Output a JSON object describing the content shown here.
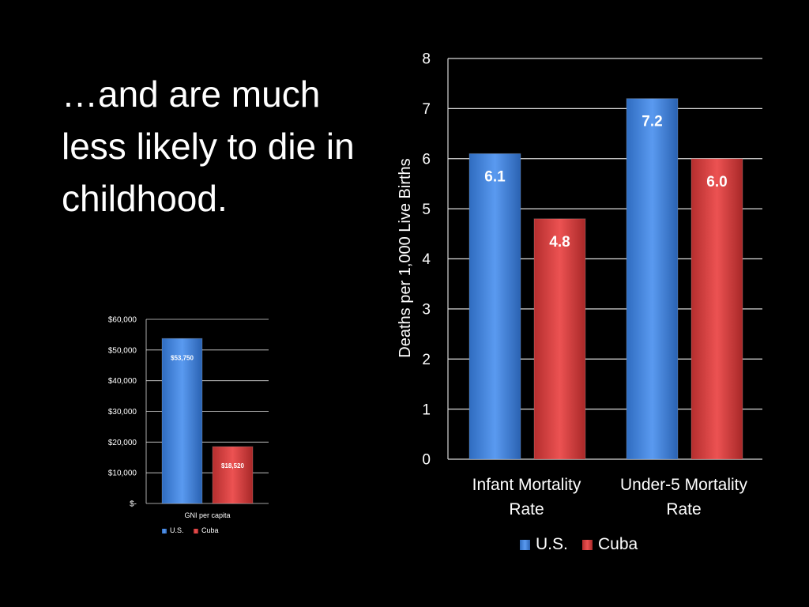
{
  "slide": {
    "title": "…and are much less likely to die in childhood."
  },
  "colors": {
    "us": "#3a7fd6",
    "cuba": "#d43a3a",
    "background": "#000000",
    "text": "#ffffff"
  },
  "chart_data": [
    {
      "id": "mortality",
      "type": "bar",
      "title": "",
      "ylabel": "Deaths per 1,000 Live Births",
      "xlabel": "",
      "ylim": [
        0,
        8
      ],
      "yticks": [
        0,
        1,
        2,
        3,
        4,
        5,
        6,
        7,
        8
      ],
      "grid": true,
      "legend_position": "bottom",
      "categories": [
        [
          "Infant Mortality",
          "Rate"
        ],
        [
          "Under-5 Mortality",
          "Rate"
        ]
      ],
      "series": [
        {
          "name": "U.S.",
          "values": [
            6.1,
            7.2
          ],
          "labels": [
            "6.1",
            "7.2"
          ]
        },
        {
          "name": "Cuba",
          "values": [
            4.8,
            6.0
          ],
          "labels": [
            "4.8",
            "6.0"
          ]
        }
      ]
    },
    {
      "id": "gni",
      "type": "bar",
      "title": "",
      "ylabel": "",
      "xlabel": "GNI per capita",
      "ylim": [
        0,
        60000
      ],
      "yticks": [
        0,
        10000,
        20000,
        30000,
        40000,
        50000,
        60000
      ],
      "ytick_labels": [
        "$-",
        "$10,000",
        "$20,000",
        "$30,000",
        "$40,000",
        "$50,000",
        "$60,000"
      ],
      "grid": true,
      "legend_position": "bottom",
      "categories": [
        "GNI per capita"
      ],
      "series": [
        {
          "name": "U.S.",
          "values": [
            53750
          ],
          "labels": [
            "$53,750"
          ]
        },
        {
          "name": "Cuba",
          "values": [
            18520
          ],
          "labels": [
            "$18,520"
          ]
        }
      ]
    }
  ]
}
